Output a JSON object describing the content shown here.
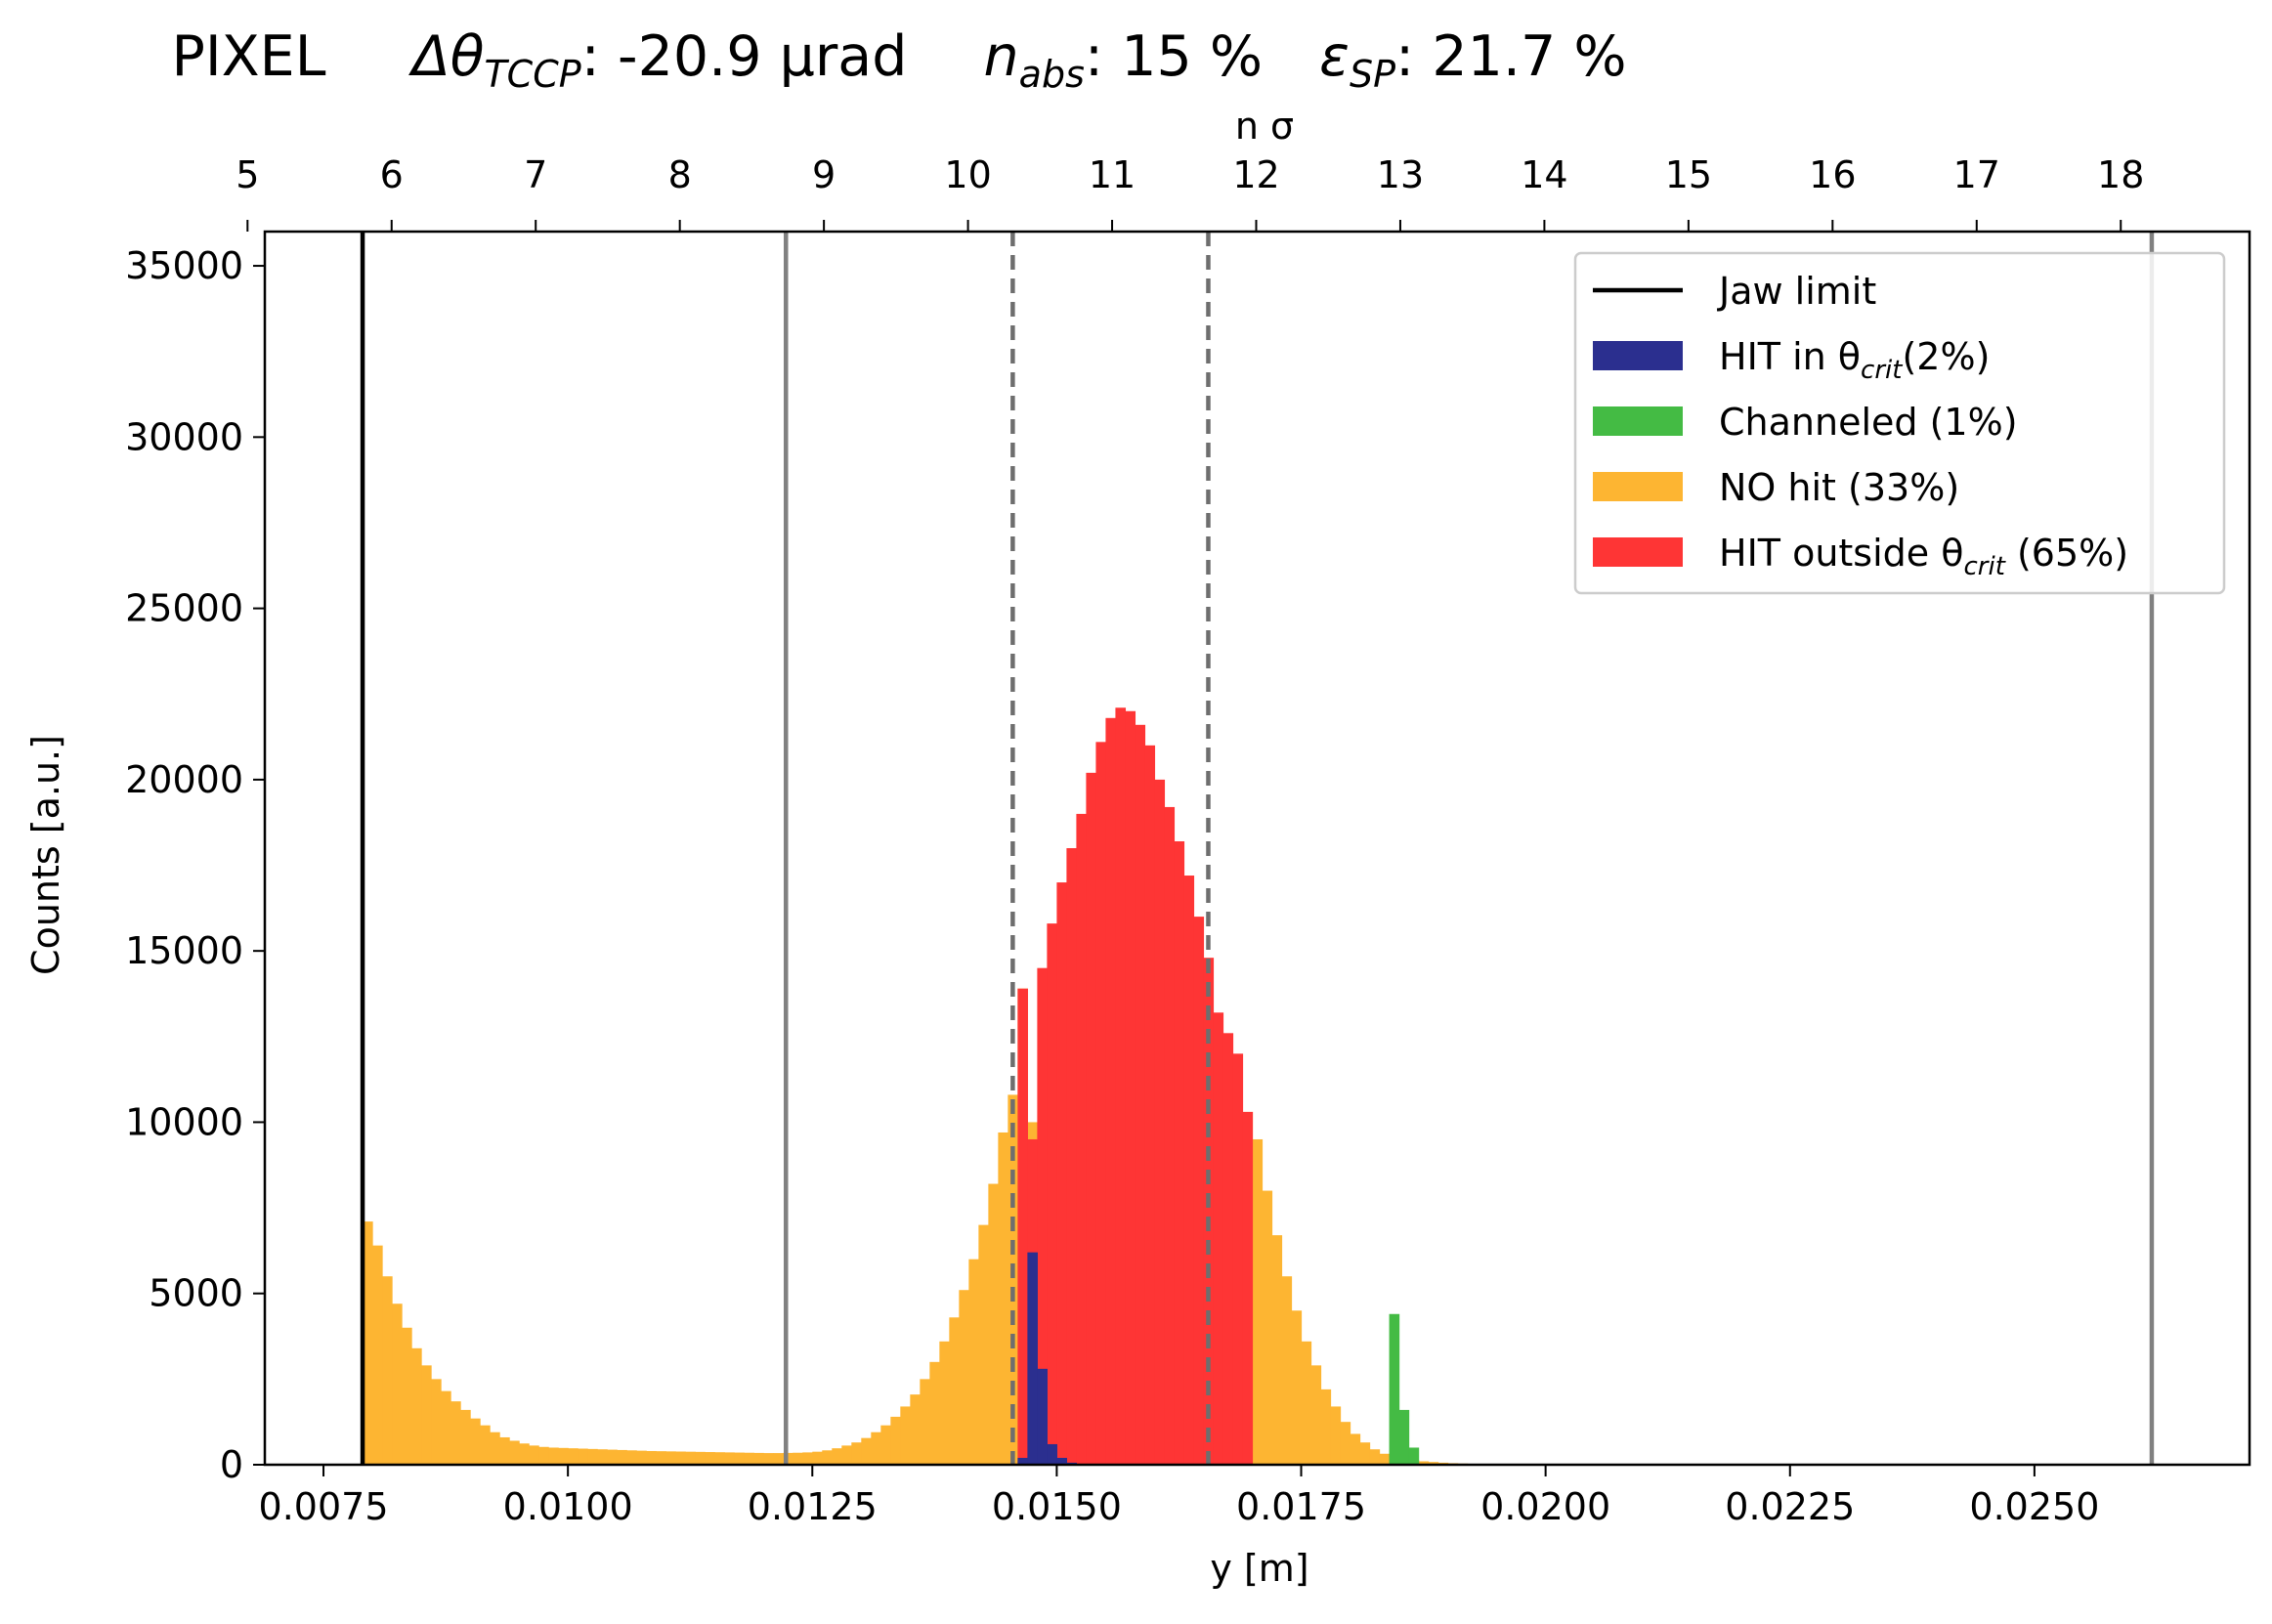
{
  "title": {
    "prefix": "PIXEL",
    "delta_label": "Δθ",
    "delta_sub": "TCCP",
    "delta_value": ": -20.9 μrad",
    "n_label": "n",
    "n_sub": "abs",
    "n_value": ": 15 %",
    "eps_label": "ε",
    "eps_sub": "SP",
    "eps_value": ": 21.7 %"
  },
  "chart_data": {
    "type": "bar",
    "xlabel": "y [m]",
    "ylabel": "Counts [a.u.]",
    "top_xlabel": "n σ",
    "xlim": [
      0.0069,
      0.0272
    ],
    "ylim": [
      0,
      36000
    ],
    "x_ticks": [
      "0.0075",
      "0.0100",
      "0.0125",
      "0.0150",
      "0.0175",
      "0.0200",
      "0.0225",
      "0.0250"
    ],
    "y_ticks": [
      "0",
      "5000",
      "10000",
      "15000",
      "20000",
      "25000",
      "30000",
      "35000"
    ],
    "top_ticks": [
      "5",
      "6",
      "7",
      "8",
      "9",
      "10",
      "11",
      "12",
      "13",
      "14",
      "15",
      "16",
      "17",
      "18"
    ],
    "top_axis_map": {
      "n_at_xmin": 5.12,
      "n_per_meter": 678.5
    },
    "bin_width": 0.0001,
    "vertical_lines": [
      {
        "x": 0.0079,
        "style": "solid",
        "color": "#000000",
        "series": "Jaw limit"
      },
      {
        "x": 0.01223,
        "style": "solid",
        "color": "#808080"
      },
      {
        "x": 0.0262,
        "style": "solid",
        "color": "#808080"
      },
      {
        "x": 0.01455,
        "style": "dashed",
        "color": "#6e6e6e"
      },
      {
        "x": 0.01655,
        "style": "dashed",
        "color": "#6e6e6e"
      }
    ],
    "legend": [
      {
        "label": "Jaw limit",
        "kind": "line",
        "color": "#000000"
      },
      {
        "label": "HIT in θ",
        "sub": "crit",
        "suffix": "(2%)",
        "kind": "patch",
        "color": "#2b2f8f"
      },
      {
        "label": "Channeled (1%)",
        "kind": "patch",
        "color": "#44bb44"
      },
      {
        "label": "NO hit (33%)",
        "kind": "patch",
        "color": "#fdb532"
      },
      {
        "label": "HIT outside θ",
        "sub": "crit",
        "suffix": " (65%)",
        "kind": "patch",
        "color": "#fe3535"
      }
    ],
    "legend_position": "upper right",
    "series": [
      {
        "name": "NO hit (33%)",
        "color": "#fdb532",
        "points": [
          [
            0.0079,
            7100
          ],
          [
            0.008,
            6400
          ],
          [
            0.0081,
            5500
          ],
          [
            0.0082,
            4700
          ],
          [
            0.0083,
            4000
          ],
          [
            0.0084,
            3400
          ],
          [
            0.0085,
            2900
          ],
          [
            0.0086,
            2500
          ],
          [
            0.0087,
            2150
          ],
          [
            0.0088,
            1850
          ],
          [
            0.0089,
            1600
          ],
          [
            0.009,
            1350
          ],
          [
            0.0091,
            1150
          ],
          [
            0.0092,
            950
          ],
          [
            0.0093,
            800
          ],
          [
            0.0094,
            700
          ],
          [
            0.0095,
            620
          ],
          [
            0.0096,
            560
          ],
          [
            0.0097,
            520
          ],
          [
            0.0098,
            500
          ],
          [
            0.0099,
            490
          ],
          [
            0.01,
            480
          ],
          [
            0.0101,
            470
          ],
          [
            0.0102,
            460
          ],
          [
            0.0103,
            450
          ],
          [
            0.0104,
            440
          ],
          [
            0.0105,
            430
          ],
          [
            0.0106,
            420
          ],
          [
            0.0107,
            410
          ],
          [
            0.0108,
            400
          ],
          [
            0.0109,
            395
          ],
          [
            0.011,
            390
          ],
          [
            0.0111,
            385
          ],
          [
            0.0112,
            380
          ],
          [
            0.0113,
            375
          ],
          [
            0.0114,
            370
          ],
          [
            0.0115,
            365
          ],
          [
            0.0116,
            360
          ],
          [
            0.0117,
            355
          ],
          [
            0.0118,
            350
          ],
          [
            0.0119,
            345
          ],
          [
            0.012,
            340
          ],
          [
            0.0121,
            340
          ],
          [
            0.0122,
            345
          ],
          [
            0.0123,
            350
          ],
          [
            0.0124,
            360
          ],
          [
            0.0125,
            380
          ],
          [
            0.0126,
            420
          ],
          [
            0.0127,
            480
          ],
          [
            0.0128,
            560
          ],
          [
            0.0129,
            650
          ],
          [
            0.013,
            780
          ],
          [
            0.0131,
            950
          ],
          [
            0.0132,
            1150
          ],
          [
            0.0133,
            1400
          ],
          [
            0.0134,
            1700
          ],
          [
            0.0135,
            2050
          ],
          [
            0.0136,
            2500
          ],
          [
            0.0137,
            3000
          ],
          [
            0.0138,
            3600
          ],
          [
            0.0139,
            4300
          ],
          [
            0.014,
            5100
          ],
          [
            0.0141,
            6000
          ],
          [
            0.0142,
            7000
          ],
          [
            0.0143,
            8200
          ],
          [
            0.0144,
            9700
          ],
          [
            0.0145,
            10800
          ],
          [
            0.0146,
            13900
          ],
          [
            0.0147,
            10000
          ],
          [
            0.0148,
            9000
          ],
          [
            0.0149,
            8500
          ],
          [
            0.015,
            8000
          ],
          [
            0.0151,
            7800
          ],
          [
            0.0152,
            7500
          ],
          [
            0.0153,
            7500
          ],
          [
            0.0154,
            7500
          ],
          [
            0.0155,
            7500
          ],
          [
            0.0156,
            7500
          ],
          [
            0.0157,
            7500
          ],
          [
            0.0158,
            7500
          ],
          [
            0.0159,
            7500
          ],
          [
            0.016,
            7500
          ],
          [
            0.0161,
            7500
          ],
          [
            0.0162,
            7500
          ],
          [
            0.0163,
            7500
          ],
          [
            0.0164,
            7500
          ],
          [
            0.0165,
            7500
          ],
          [
            0.0166,
            7400
          ],
          [
            0.0167,
            7200
          ],
          [
            0.0168,
            7000
          ],
          [
            0.0169,
            10300
          ],
          [
            0.017,
            9500
          ],
          [
            0.0171,
            8000
          ],
          [
            0.0172,
            6700
          ],
          [
            0.0173,
            5500
          ],
          [
            0.0174,
            4500
          ],
          [
            0.0175,
            3600
          ],
          [
            0.0176,
            2900
          ],
          [
            0.0177,
            2200
          ],
          [
            0.0178,
            1700
          ],
          [
            0.0179,
            1250
          ],
          [
            0.018,
            900
          ],
          [
            0.0181,
            650
          ],
          [
            0.0182,
            450
          ],
          [
            0.0183,
            320
          ],
          [
            0.0184,
            230
          ],
          [
            0.0185,
            170
          ],
          [
            0.0186,
            130
          ],
          [
            0.0187,
            100
          ],
          [
            0.0188,
            80
          ],
          [
            0.0189,
            60
          ],
          [
            0.019,
            45
          ],
          [
            0.0191,
            35
          ],
          [
            0.0192,
            25
          ],
          [
            0.0193,
            18
          ],
          [
            0.0194,
            12
          ],
          [
            0.0195,
            8
          ],
          [
            0.0196,
            5
          ],
          [
            0.0197,
            3
          ],
          [
            0.0198,
            2
          ],
          [
            0.0199,
            1
          ]
        ]
      },
      {
        "name": "HIT outside θcrit (65%)",
        "color": "#fe3535",
        "points": [
          [
            0.0146,
            13900
          ],
          [
            0.0147,
            9500
          ],
          [
            0.0148,
            14500
          ],
          [
            0.0149,
            15800
          ],
          [
            0.015,
            17000
          ],
          [
            0.0151,
            18000
          ],
          [
            0.0152,
            19000
          ],
          [
            0.0153,
            20200
          ],
          [
            0.0154,
            21100
          ],
          [
            0.0155,
            21800
          ],
          [
            0.0156,
            22100
          ],
          [
            0.0157,
            22000
          ],
          [
            0.0158,
            21600
          ],
          [
            0.0159,
            21000
          ],
          [
            0.016,
            20000
          ],
          [
            0.0161,
            19200
          ],
          [
            0.0162,
            18200
          ],
          [
            0.0163,
            17200
          ],
          [
            0.0164,
            16000
          ],
          [
            0.0165,
            14800
          ],
          [
            0.0166,
            13200
          ],
          [
            0.0167,
            12600
          ],
          [
            0.0168,
            12000
          ],
          [
            0.0169,
            10300
          ]
        ]
      },
      {
        "name": "HIT in θcrit (2%)",
        "color": "#2b2f8f",
        "points": [
          [
            0.0146,
            200
          ],
          [
            0.0147,
            6200
          ],
          [
            0.0148,
            2800
          ],
          [
            0.0149,
            600
          ],
          [
            0.015,
            200
          ],
          [
            0.0151,
            60
          ]
        ]
      },
      {
        "name": "Channeled (1%)",
        "color": "#44bb44",
        "points": [
          [
            0.0184,
            4400
          ],
          [
            0.0185,
            1600
          ],
          [
            0.0186,
            500
          ]
        ]
      }
    ]
  }
}
